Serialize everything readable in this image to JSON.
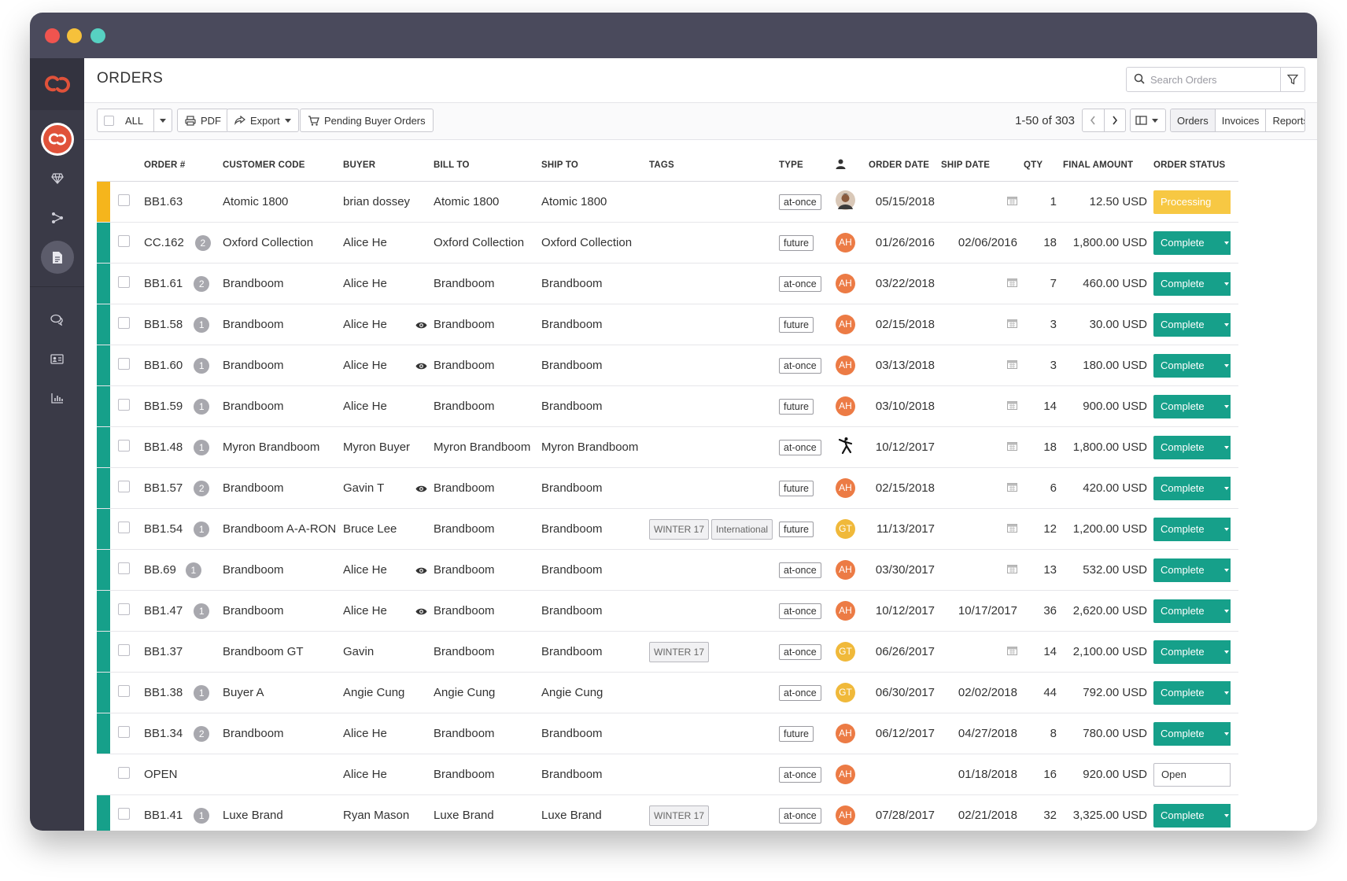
{
  "app": {
    "title": "ORDERS"
  },
  "search": {
    "placeholder": "Search Orders"
  },
  "toolbar": {
    "select_all_label": "ALL",
    "pdf_label": "PDF",
    "export_label": "Export",
    "pending_label": "Pending Buyer Orders",
    "page_info": "1-50 of 303",
    "view_tabs": [
      "Orders",
      "Invoices",
      "Reports"
    ],
    "active_tab": "Orders"
  },
  "columns": {
    "order": "ORDER #",
    "customer_code": "CUSTOMER CODE",
    "buyer": "BUYER",
    "bill_to": "BILL TO",
    "ship_to": "SHIP TO",
    "tags": "TAGS",
    "type": "TYPE",
    "order_date": "ORDER DATE",
    "ship_date": "SHIP DATE",
    "qty": "QTY",
    "final_amount": "FINAL AMOUNT",
    "order_status": "ORDER STATUS"
  },
  "colors": {
    "complete": "#16a08a",
    "processing": "#f5b51c",
    "avatar_ah": "#ec7b45",
    "avatar_gt": "#f0b93a",
    "brand": "#e0523a"
  },
  "rows": [
    {
      "order": "BB1.63",
      "count": "",
      "customer": "Atomic 1800",
      "buyer": "brian dossey",
      "viewed": false,
      "bill_to": "Atomic 1800",
      "ship_to": "Atomic 1800",
      "tags": [],
      "type": "at-once",
      "avatar": "photo",
      "avatar_text": "",
      "order_date": "05/15/2018",
      "ship_date": "",
      "qty": "1",
      "amount": "12.50 USD",
      "status": "Processing",
      "status_kind": "processing"
    },
    {
      "order": "CC.162",
      "count": "2",
      "customer": "Oxford Collection",
      "buyer": "Alice He",
      "viewed": false,
      "bill_to": "Oxford Collection",
      "ship_to": "Oxford Collection",
      "tags": [],
      "type": "future",
      "avatar": "ah",
      "avatar_text": "AH",
      "order_date": "01/26/2016",
      "ship_date": "02/06/2016",
      "qty": "18",
      "amount": "1,800.00 USD",
      "status": "Complete",
      "status_kind": "complete"
    },
    {
      "order": "BB1.61",
      "count": "2",
      "customer": "Brandboom",
      "buyer": "Alice He",
      "viewed": false,
      "bill_to": "Brandboom",
      "ship_to": "Brandboom",
      "tags": [],
      "type": "at-once",
      "avatar": "ah",
      "avatar_text": "AH",
      "order_date": "03/22/2018",
      "ship_date": "",
      "qty": "7",
      "amount": "460.00 USD",
      "status": "Complete",
      "status_kind": "complete"
    },
    {
      "order": "BB1.58",
      "count": "1",
      "customer": "Brandboom",
      "buyer": "Alice He",
      "viewed": true,
      "bill_to": "Brandboom",
      "ship_to": "Brandboom",
      "tags": [],
      "type": "future",
      "avatar": "ah",
      "avatar_text": "AH",
      "order_date": "02/15/2018",
      "ship_date": "",
      "qty": "3",
      "amount": "30.00 USD",
      "status": "Complete",
      "status_kind": "complete"
    },
    {
      "order": "BB1.60",
      "count": "1",
      "customer": "Brandboom",
      "buyer": "Alice He",
      "viewed": true,
      "bill_to": "Brandboom",
      "ship_to": "Brandboom",
      "tags": [],
      "type": "at-once",
      "avatar": "ah",
      "avatar_text": "AH",
      "order_date": "03/13/2018",
      "ship_date": "",
      "qty": "3",
      "amount": "180.00 USD",
      "status": "Complete",
      "status_kind": "complete"
    },
    {
      "order": "BB1.59",
      "count": "1",
      "customer": "Brandboom",
      "buyer": "Alice He",
      "viewed": false,
      "bill_to": "Brandboom",
      "ship_to": "Brandboom",
      "tags": [],
      "type": "future",
      "avatar": "ah",
      "avatar_text": "AH",
      "order_date": "03/10/2018",
      "ship_date": "",
      "qty": "14",
      "amount": "900.00 USD",
      "status": "Complete",
      "status_kind": "complete"
    },
    {
      "order": "BB1.48",
      "count": "1",
      "customer": "Myron Brandboom",
      "buyer": "Myron Buyer",
      "viewed": false,
      "bill_to": "Myron Brandboom",
      "ship_to": "Myron Brandboom",
      "tags": [],
      "type": "at-once",
      "avatar": "logo",
      "avatar_text": "",
      "order_date": "10/12/2017",
      "ship_date": "",
      "qty": "18",
      "amount": "1,800.00 USD",
      "status": "Complete",
      "status_kind": "complete"
    },
    {
      "order": "BB1.57",
      "count": "2",
      "customer": "Brandboom",
      "buyer": "Gavin T",
      "viewed": true,
      "bill_to": "Brandboom",
      "ship_to": "Brandboom",
      "tags": [],
      "type": "future",
      "avatar": "ah",
      "avatar_text": "AH",
      "order_date": "02/15/2018",
      "ship_date": "",
      "qty": "6",
      "amount": "420.00 USD",
      "status": "Complete",
      "status_kind": "complete"
    },
    {
      "order": "BB1.54",
      "count": "1",
      "customer": "Brandboom A-A-RON",
      "buyer": "Bruce Lee",
      "viewed": false,
      "bill_to": "Brandboom",
      "ship_to": "Brandboom",
      "tags": [
        "WINTER 17",
        "International"
      ],
      "type": "future",
      "avatar": "gt",
      "avatar_text": "GT",
      "order_date": "11/13/2017",
      "ship_date": "",
      "qty": "12",
      "amount": "1,200.00 USD",
      "status": "Complete",
      "status_kind": "complete"
    },
    {
      "order": "BB.69",
      "count": "1",
      "customer": "Brandboom",
      "buyer": "Alice He",
      "viewed": true,
      "bill_to": "Brandboom",
      "ship_to": "Brandboom",
      "tags": [],
      "type": "at-once",
      "avatar": "ah",
      "avatar_text": "AH",
      "order_date": "03/30/2017",
      "ship_date": "",
      "qty": "13",
      "amount": "532.00 USD",
      "status": "Complete",
      "status_kind": "complete"
    },
    {
      "order": "BB1.47",
      "count": "1",
      "customer": "Brandboom",
      "buyer": "Alice He",
      "viewed": true,
      "bill_to": "Brandboom",
      "ship_to": "Brandboom",
      "tags": [],
      "type": "at-once",
      "avatar": "ah",
      "avatar_text": "AH",
      "order_date": "10/12/2017",
      "ship_date": "10/17/2017",
      "qty": "36",
      "amount": "2,620.00 USD",
      "status": "Complete",
      "status_kind": "complete"
    },
    {
      "order": "BB1.37",
      "count": "",
      "customer": "Brandboom GT",
      "buyer": "Gavin",
      "viewed": false,
      "bill_to": "Brandboom",
      "ship_to": "Brandboom",
      "tags": [
        "WINTER 17"
      ],
      "type": "at-once",
      "avatar": "gt",
      "avatar_text": "GT",
      "order_date": "06/26/2017",
      "ship_date": "",
      "qty": "14",
      "amount": "2,100.00 USD",
      "status": "Complete",
      "status_kind": "complete"
    },
    {
      "order": "BB1.38",
      "count": "1",
      "customer": "Buyer A",
      "buyer": "Angie Cung",
      "viewed": false,
      "bill_to": "Angie Cung",
      "ship_to": "Angie Cung",
      "tags": [],
      "type": "at-once",
      "avatar": "gt",
      "avatar_text": "GT",
      "order_date": "06/30/2017",
      "ship_date": "02/02/2018",
      "qty": "44",
      "amount": "792.00 USD",
      "status": "Complete",
      "status_kind": "complete"
    },
    {
      "order": "BB1.34",
      "count": "2",
      "customer": "Brandboom",
      "buyer": "Alice He",
      "viewed": false,
      "bill_to": "Brandboom",
      "ship_to": "Brandboom",
      "tags": [],
      "type": "future",
      "avatar": "ah",
      "avatar_text": "AH",
      "order_date": "06/12/2017",
      "ship_date": "04/27/2018",
      "qty": "8",
      "amount": "780.00 USD",
      "status": "Complete",
      "status_kind": "complete"
    },
    {
      "order": "OPEN",
      "count": "",
      "customer": "",
      "buyer": "Alice He",
      "viewed": false,
      "bill_to": "Brandboom",
      "ship_to": "Brandboom",
      "tags": [],
      "type": "at-once",
      "avatar": "ah",
      "avatar_text": "AH",
      "order_date": "",
      "ship_date": "01/18/2018",
      "qty": "16",
      "amount": "920.00 USD",
      "status": "Open",
      "status_kind": "open"
    },
    {
      "order": "BB1.41",
      "count": "1",
      "customer": "Luxe Brand",
      "buyer": "Ryan Mason",
      "viewed": false,
      "bill_to": "Luxe Brand",
      "ship_to": "Luxe Brand",
      "tags": [
        "WINTER 17"
      ],
      "type": "at-once",
      "avatar": "ah",
      "avatar_text": "AH",
      "order_date": "07/28/2017",
      "ship_date": "02/21/2018",
      "qty": "32",
      "amount": "3,325.00 USD",
      "status": "Complete",
      "status_kind": "complete"
    }
  ]
}
